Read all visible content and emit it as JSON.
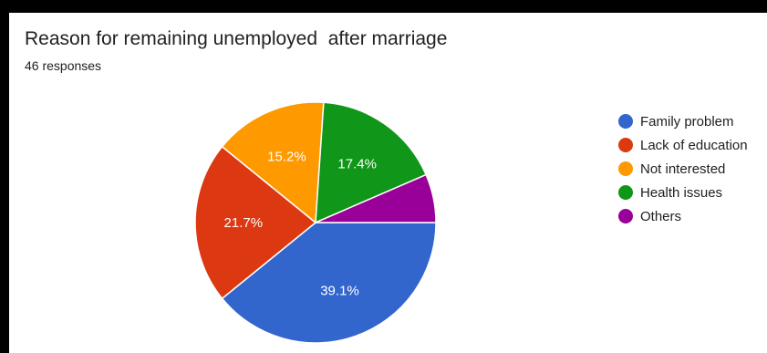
{
  "chart_data": {
    "type": "pie",
    "title": "Reason for remaining unemployed  after marriage",
    "subtitle": "46 responses",
    "categories": [
      "Family problem",
      "Lack of education",
      "Not interested",
      "Health issues",
      "Others"
    ],
    "values": [
      39.1,
      21.7,
      15.2,
      17.4,
      6.5
    ],
    "labels": [
      "39.1%",
      "21.7%",
      "15.2%",
      "17.4%",
      ""
    ],
    "colors": [
      "#3366cc",
      "#dc3912",
      "#ff9900",
      "#109618",
      "#990099"
    ],
    "legend_position": "right"
  }
}
